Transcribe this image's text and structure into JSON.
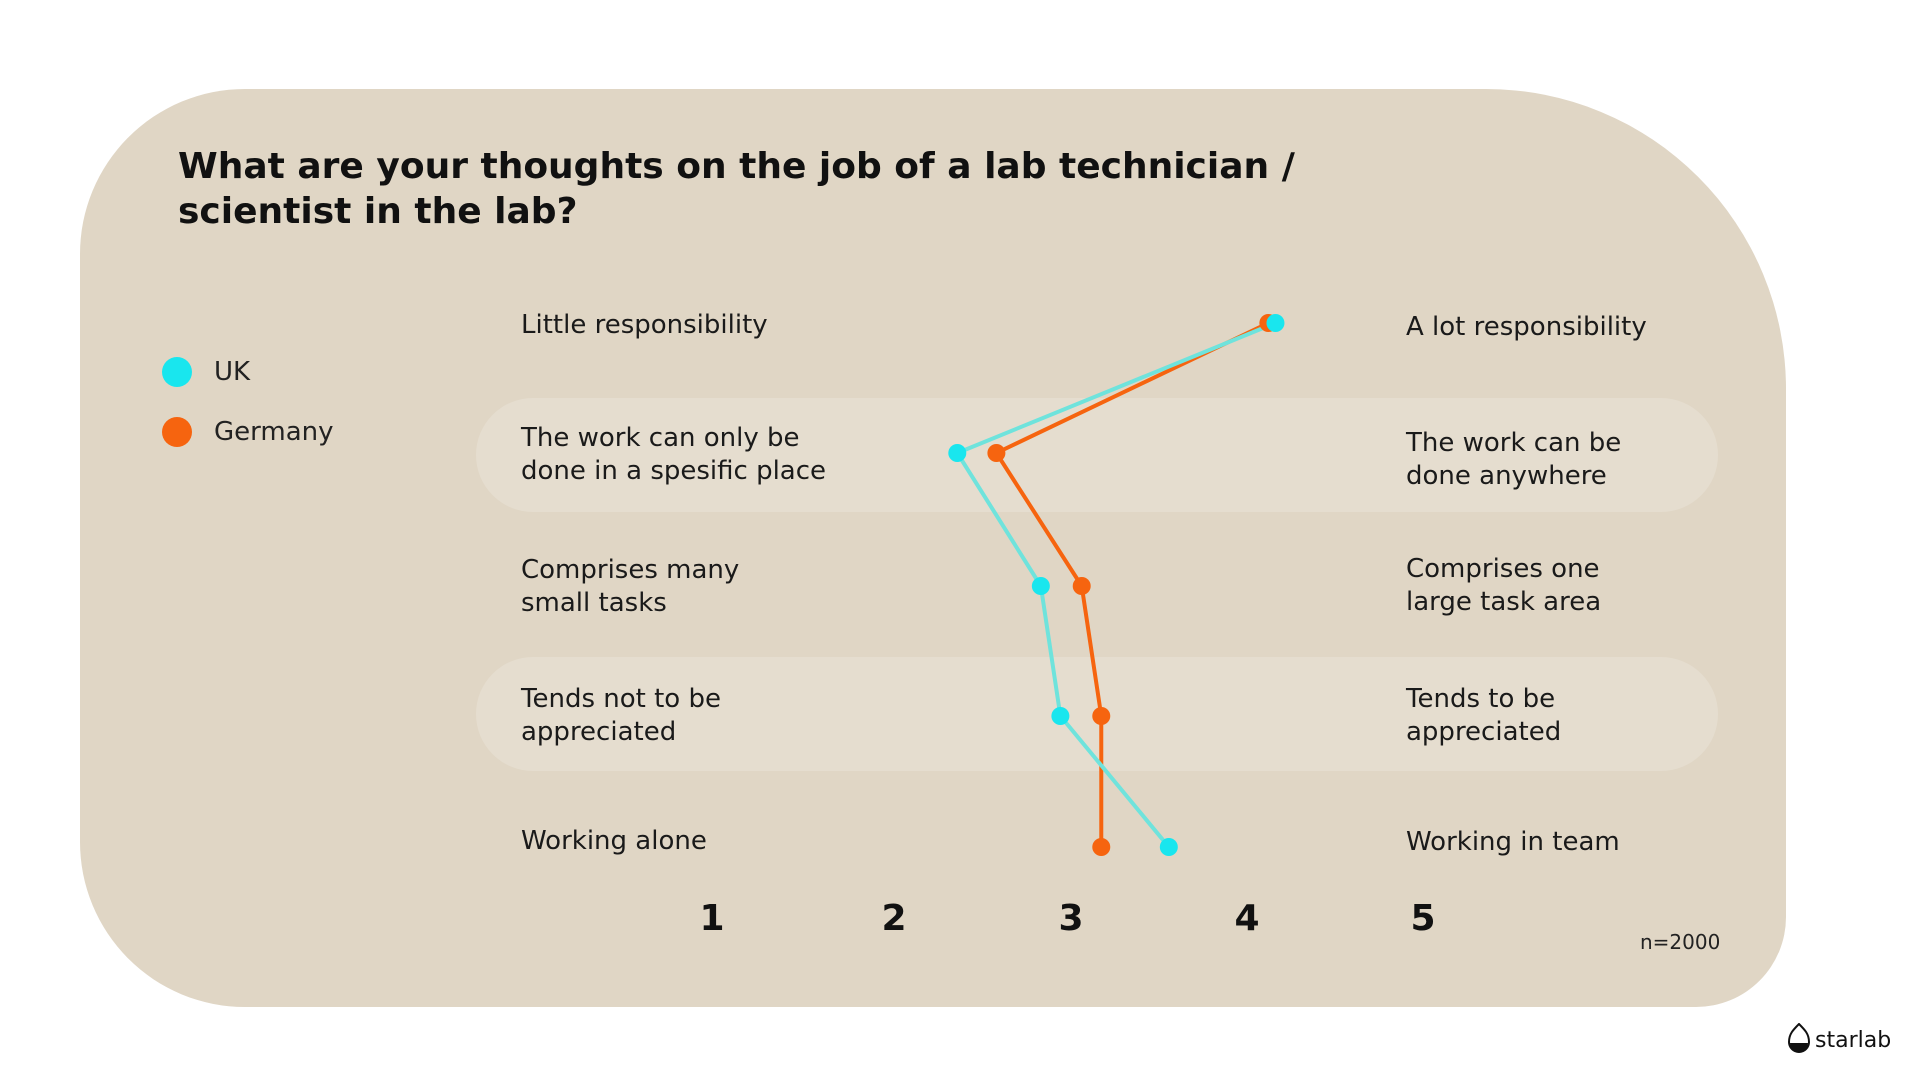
{
  "title": "What are your thoughts on the job of a lab technician / scientist in the lab?",
  "legend": [
    {
      "label": "UK",
      "color": "#19e6ee"
    },
    {
      "label": "Germany",
      "color": "#f6640f"
    }
  ],
  "note": "n=2000",
  "brand": "starlab",
  "chart_data": {
    "type": "line",
    "title": "What are your thoughts on the job of a lab technician / scientist in the lab?",
    "xlim": [
      1,
      5
    ],
    "x_ticks": [
      "1",
      "2",
      "3",
      "4",
      "5"
    ],
    "rows": [
      {
        "left": "Little responsibility",
        "right": "A lot responsibility"
      },
      {
        "left": "The work can only be\ndone in a spesific place",
        "right": "The work can  be\ndone  anywhere"
      },
      {
        "left": "Comprises many\nsmall tasks",
        "right": "Comprises one\nlarge task area"
      },
      {
        "left": "Tends not to be\nappreciated",
        "right": "Tends to be\nappreciated"
      },
      {
        "left": "Working alone",
        "right": "Working in team"
      }
    ],
    "series": [
      {
        "name": "UK",
        "color": "#19e6ee",
        "line_color": "#6fe3dc",
        "values": [
          4.17,
          2.38,
          2.85,
          2.96,
          3.57
        ]
      },
      {
        "name": "Germany",
        "color": "#f6640f",
        "line_color": "#f6640f",
        "values": [
          4.13,
          2.6,
          3.08,
          3.19,
          3.19
        ]
      }
    ],
    "note": "n=2000"
  }
}
